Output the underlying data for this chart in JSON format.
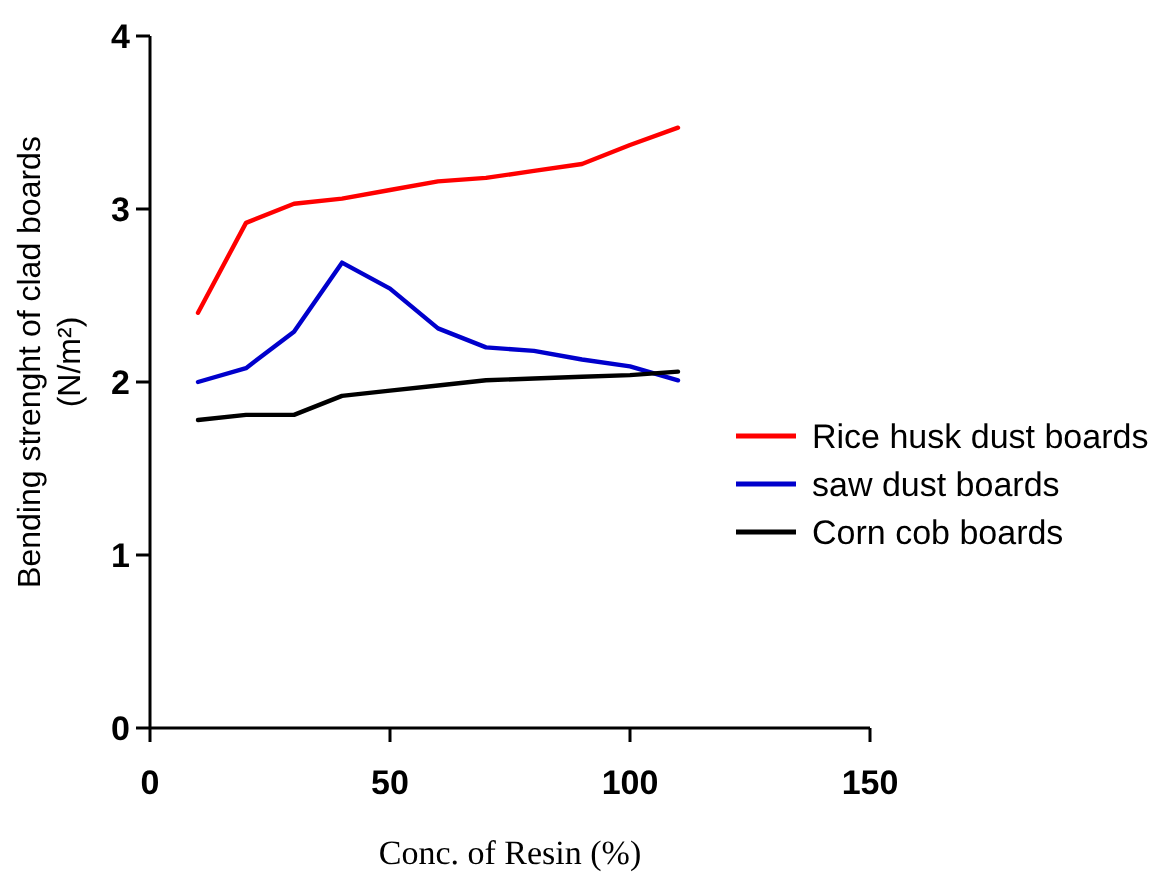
{
  "chart_data": {
    "type": "line",
    "xlabel": "Conc. of Resin (%)",
    "ylabel": "Bending strenght of clad boards\n(N/m²)",
    "x": [
      10,
      20,
      30,
      40,
      50,
      60,
      70,
      80,
      90,
      100,
      110
    ],
    "series": [
      {
        "name": "Rice husk dust boards",
        "color": "#ff0000",
        "values": [
          2.4,
          2.92,
          3.03,
          3.06,
          3.11,
          3.16,
          3.18,
          3.22,
          3.26,
          3.37,
          3.47
        ]
      },
      {
        "name": "saw dust boards",
        "color": "#0000cc",
        "values": [
          2.0,
          2.08,
          2.29,
          2.69,
          2.54,
          2.31,
          2.2,
          2.18,
          2.13,
          2.09,
          2.01
        ]
      },
      {
        "name": "Corn cob boards",
        "color": "#000000",
        "values": [
          1.78,
          1.81,
          1.81,
          1.92,
          1.95,
          1.98,
          2.01,
          2.02,
          2.03,
          2.04,
          2.06
        ]
      }
    ],
    "xlim": [
      0,
      150
    ],
    "xticks": [
      0,
      50,
      100,
      150
    ],
    "ylim": [
      0,
      4
    ],
    "yticks": [
      0,
      1,
      2,
      3,
      4
    ],
    "grid": false,
    "legend": "right",
    "marker": "none",
    "line_style": "solid"
  }
}
